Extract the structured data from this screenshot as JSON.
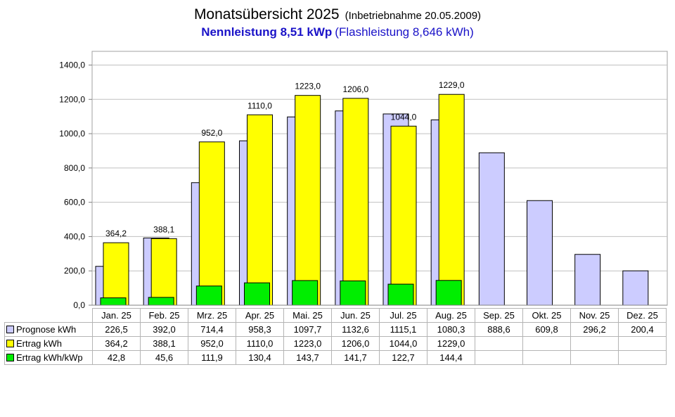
{
  "title": {
    "main": "Monatsübersicht 2025",
    "sub": "(Inbetriebnahme  20.05.2009)",
    "line2_bold": "Nennleistung 8,51 kWp",
    "line2_plain": "(Flashleistung 8,646 kWh)"
  },
  "colors": {
    "prognose": "#ccccff",
    "ertrag": "#ffff00",
    "ertrag_kwp": "#00ee00",
    "title2": "#1a12c8"
  },
  "chart_data": {
    "type": "bar",
    "categories": [
      "Jan. 25",
      "Feb. 25",
      "Mrz. 25",
      "Apr. 25",
      "Mai. 25",
      "Jun. 25",
      "Jul. 25",
      "Aug. 25",
      "Sep. 25",
      "Okt. 25",
      "Nov. 25",
      "Dez. 25"
    ],
    "series": [
      {
        "name": "Prognose kWh",
        "values": [
          226.5,
          392.0,
          714.4,
          958.3,
          1097.7,
          1132.6,
          1115.1,
          1080.3,
          888.6,
          609.8,
          296.2,
          200.4
        ]
      },
      {
        "name": "Ertrag kWh",
        "values": [
          364.2,
          388.1,
          952.0,
          1110.0,
          1223.0,
          1206.0,
          1044.0,
          1229.0,
          null,
          null,
          null,
          null
        ]
      },
      {
        "name": "Ertrag kWh/kWp",
        "values": [
          42.8,
          45.6,
          111.9,
          130.4,
          143.7,
          141.7,
          122.7,
          144.4,
          null,
          null,
          null,
          null
        ]
      }
    ],
    "data_labels": [
      "364,2",
      "388,1",
      "952,0",
      "1110,0",
      "1223,0",
      "1206,0",
      "1044,0",
      "1229,0"
    ],
    "y_ticks": [
      "0,0",
      "200,0",
      "400,0",
      "600,0",
      "800,0",
      "1000,0",
      "1200,0",
      "1400,0"
    ],
    "ylim": [
      0,
      1480
    ],
    "grid": true,
    "legend": "table-below"
  },
  "table": {
    "rows": [
      {
        "label": "Prognose kWh",
        "cells": [
          "226,5",
          "392,0",
          "714,4",
          "958,3",
          "1097,7",
          "1132,6",
          "1115,1",
          "1080,3",
          "888,6",
          "609,8",
          "296,2",
          "200,4"
        ]
      },
      {
        "label": "Ertrag kWh",
        "cells": [
          "364,2",
          "388,1",
          "952,0",
          "1110,0",
          "1223,0",
          "1206,0",
          "1044,0",
          "1229,0",
          "",
          "",
          "",
          ""
        ]
      },
      {
        "label": "Ertrag kWh/kWp",
        "cells": [
          "42,8",
          "45,6",
          "111,9",
          "130,4",
          "143,7",
          "141,7",
          "122,7",
          "144,4",
          "",
          "",
          "",
          ""
        ]
      }
    ]
  }
}
